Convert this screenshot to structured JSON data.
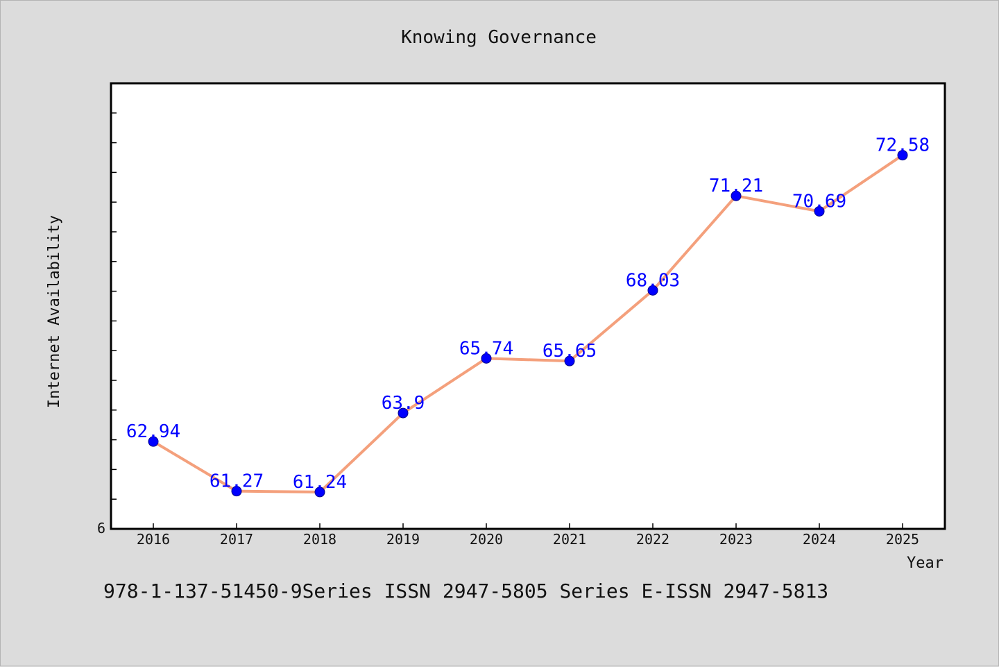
{
  "chart_data": {
    "type": "line",
    "title": "Knowing Governance",
    "xlabel": "Year",
    "ylabel": "Internet Availability",
    "categories": [
      "2016",
      "2017",
      "2018",
      "2019",
      "2020",
      "2021",
      "2022",
      "2023",
      "2024",
      "2025"
    ],
    "series": [
      {
        "values": [
          62.94,
          61.27,
          61.24,
          63.9,
          65.74,
          65.65,
          68.03,
          71.21,
          70.69,
          72.58
        ],
        "labels": [
          "62.94",
          "61.27",
          "61.24",
          "63.9",
          "65.74",
          "65.65",
          "68.03",
          "71.21",
          "70.69",
          "72.58"
        ],
        "line_color": "#f4a07c",
        "marker_color": "#0000ff"
      }
    ],
    "ylim": [
      60.0,
      75.0
    ],
    "y_ticks": [
      60.0,
      61.0,
      62.0,
      63.0,
      64.0,
      65.0,
      66.0,
      67.0,
      68.0,
      69.0,
      70.0,
      71.0,
      72.0,
      73.0,
      74.0
    ],
    "y_tick_label": "6",
    "grid": false,
    "legend": "none"
  },
  "footer": {
    "text": "978-1-137-51450-9Series ISSN 2947-5805 Series E-ISSN 2947-5813"
  },
  "colors": {
    "background": "#dcdcdc",
    "plot_background": "#ffffff",
    "line": "#f4a07c",
    "marker": "#0000ff",
    "data_label": "#0000ff"
  }
}
